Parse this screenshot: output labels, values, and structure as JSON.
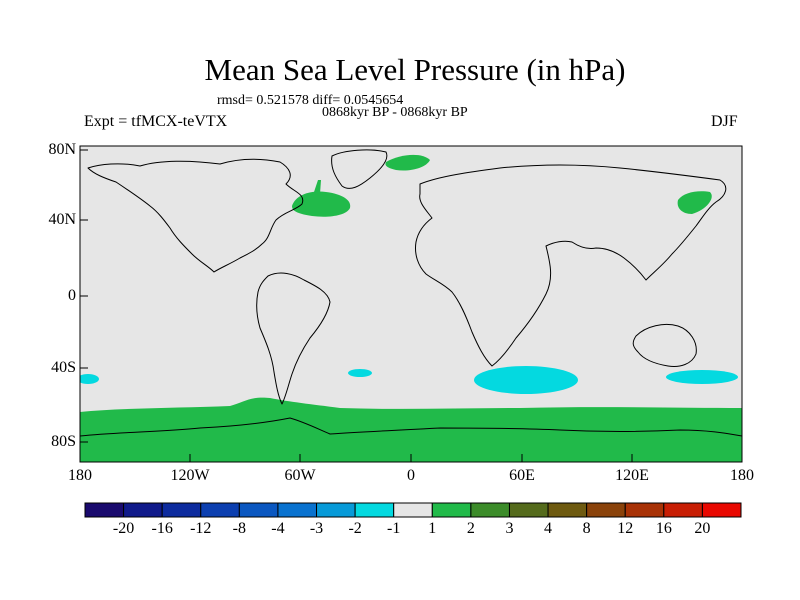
{
  "header": {
    "title": "Mean Sea Level Pressure (in hPa)",
    "stats": "rmsd= 0.521578 diff= 0.0545654",
    "period": "0868kyr BP - 0868kyr BP",
    "experiment": "Expt = tfMCX-teVTX",
    "season": "DJF"
  },
  "axes": {
    "lat_labels": [
      "80N",
      "40N",
      "0",
      "40S",
      "80S"
    ],
    "lon_labels": [
      "180",
      "120W",
      "60W",
      "0",
      "60E",
      "120E",
      "180"
    ]
  },
  "colorbar": {
    "labels": [
      "-20",
      "-16",
      "-12",
      "-8",
      "-4",
      "-3",
      "-2",
      "-1",
      "1",
      "2",
      "3",
      "4",
      "8",
      "12",
      "16",
      "20"
    ],
    "colors": [
      "#1a0a6e",
      "#101a8a",
      "#0d2b9e",
      "#0c3fb0",
      "#0a57c0",
      "#0972cf",
      "#079ad8",
      "#04d9e0",
      "#e6e6e6",
      "#21ba4a",
      "#3c8c2a",
      "#556b1c",
      "#6e5a10",
      "#8a420a",
      "#a83206",
      "#c81e04",
      "#e80800"
    ]
  },
  "map": {
    "background_color": "#e6e6e6",
    "fill_color_positive": "#21ba4a",
    "fill_color_negative": "#04d9e0"
  }
}
